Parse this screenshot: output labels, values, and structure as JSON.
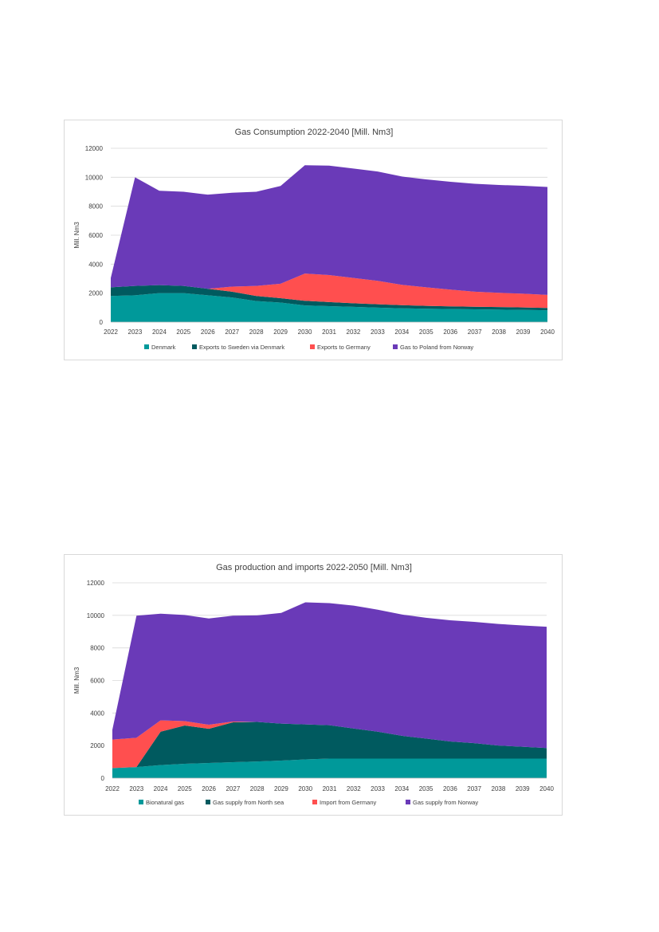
{
  "chart_data": [
    {
      "type": "area",
      "stacked": true,
      "title": "Gas Consumption  2022-2040 [Mill. Nm3]",
      "xlabel": "",
      "ylabel": "Mill. Nm3",
      "ylim": [
        0,
        12000
      ],
      "yticks": [
        "0",
        "2000",
        "4000",
        "6000",
        "8000",
        "10000",
        "12000"
      ],
      "yticks_values": [
        0,
        2000,
        4000,
        6000,
        8000,
        10000,
        12000
      ],
      "categories": [
        "2022",
        "2023",
        "2024",
        "2025",
        "2026",
        "2027",
        "2028",
        "2029",
        "2030",
        "2031",
        "2032",
        "2033",
        "2034",
        "2035",
        "2036",
        "2037",
        "2038",
        "2039",
        "2040"
      ],
      "grid": true,
      "legend_position": "bottom",
      "series": [
        {
          "name": "Denmark",
          "color": "#00999a",
          "values": [
            1800,
            1850,
            2000,
            2000,
            1850,
            1700,
            1450,
            1350,
            1150,
            1100,
            1050,
            1000,
            950,
            920,
            900,
            880,
            860,
            840,
            820
          ]
        },
        {
          "name": "Exports to Sweden via Denmark",
          "color": "#005a5f",
          "values": [
            600,
            650,
            550,
            500,
            450,
            400,
            350,
            300,
            320,
            280,
            250,
            230,
            220,
            200,
            190,
            180,
            180,
            170,
            160
          ]
        },
        {
          "name": "Exports to Germany",
          "color": "#ff4f4f",
          "values": [
            0,
            0,
            0,
            0,
            0,
            350,
            700,
            1000,
            1880,
            1870,
            1750,
            1620,
            1400,
            1280,
            1150,
            1040,
            980,
            950,
            900
          ]
        },
        {
          "name": "Gas to Poland from Norway",
          "color": "#6a3ab8",
          "values": [
            650,
            7500,
            6520,
            6500,
            6500,
            6480,
            6500,
            6750,
            7480,
            7550,
            7550,
            7550,
            7480,
            7450,
            7450,
            7450,
            7450,
            7450,
            7450
          ]
        }
      ]
    },
    {
      "type": "area",
      "stacked": true,
      "title": "Gas production and imports 2022-2050 [Mill. Nm3]",
      "xlabel": "",
      "ylabel": "Mill. Nm3",
      "ylim": [
        0,
        12000
      ],
      "yticks": [
        "0",
        "2000",
        "4000",
        "6000",
        "8000",
        "10000",
        "12000"
      ],
      "yticks_values": [
        0,
        2000,
        4000,
        6000,
        8000,
        10000,
        12000
      ],
      "categories": [
        "2022",
        "2023",
        "2024",
        "2025",
        "2026",
        "2027",
        "2028",
        "2029",
        "2030",
        "2031",
        "2032",
        "2033",
        "2034",
        "2035",
        "2036",
        "2037",
        "2038",
        "2039",
        "2040"
      ],
      "grid": true,
      "legend_position": "bottom",
      "series": [
        {
          "name": "Bionatural gas",
          "color": "#00999a",
          "values": [
            620,
            680,
            800,
            880,
            930,
            980,
            1020,
            1080,
            1150,
            1200,
            1200,
            1200,
            1200,
            1200,
            1200,
            1200,
            1200,
            1200,
            1200
          ]
        },
        {
          "name": "Gas supply from North sea",
          "color": "#005a5f",
          "values": [
            0,
            0,
            2050,
            2350,
            2100,
            2450,
            2430,
            2270,
            2150,
            2050,
            1850,
            1650,
            1400,
            1230,
            1050,
            950,
            800,
            730,
            650
          ]
        },
        {
          "name": "Import from Germany",
          "color": "#ff4f4f",
          "values": [
            1750,
            1800,
            700,
            270,
            250,
            50,
            0,
            0,
            0,
            0,
            0,
            0,
            0,
            0,
            0,
            0,
            0,
            0,
            0
          ]
        },
        {
          "name": "Gas supply from Norway",
          "color": "#6a3ab8",
          "values": [
            600,
            7500,
            6550,
            6520,
            6530,
            6500,
            6550,
            6800,
            7500,
            7500,
            7550,
            7500,
            7450,
            7420,
            7450,
            7450,
            7470,
            7450,
            7450
          ]
        }
      ]
    }
  ]
}
